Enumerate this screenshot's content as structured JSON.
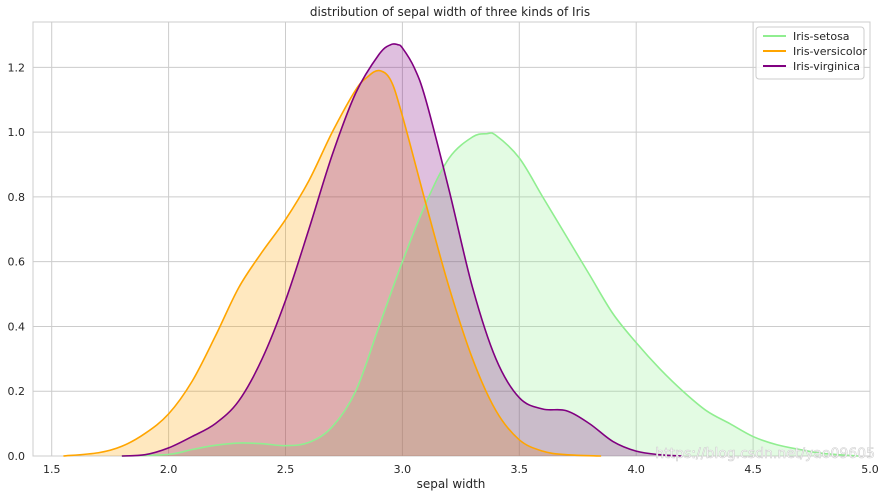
{
  "chart_data": {
    "type": "area",
    "title": "distribution of sepal width of three kinds of Iris",
    "xlabel": "sepal width",
    "ylabel": "",
    "xlim": [
      1.42,
      5.0
    ],
    "ylim": [
      0,
      1.34
    ],
    "xticks": [
      "1.5",
      "2.0",
      "2.5",
      "3.0",
      "3.5",
      "4.0",
      "4.5",
      "5.0"
    ],
    "yticks": [
      "0.0",
      "0.2",
      "0.4",
      "0.6",
      "0.8",
      "1.0",
      "1.2"
    ],
    "grid": true,
    "legend_position": "top-right",
    "series": [
      {
        "name": "Iris-setosa",
        "color": "#90ee90",
        "x": [
          1.8,
          2.0,
          2.1,
          2.2,
          2.3,
          2.4,
          2.5,
          2.6,
          2.7,
          2.8,
          2.9,
          3.0,
          3.1,
          3.2,
          3.3,
          3.36,
          3.4,
          3.5,
          3.6,
          3.7,
          3.8,
          3.9,
          4.0,
          4.1,
          4.2,
          4.3,
          4.4,
          4.5,
          4.6,
          4.7,
          4.8,
          4.95
        ],
        "y": [
          0.0,
          0.005,
          0.02,
          0.033,
          0.04,
          0.038,
          0.032,
          0.042,
          0.09,
          0.2,
          0.4,
          0.6,
          0.78,
          0.92,
          0.985,
          0.995,
          0.99,
          0.92,
          0.8,
          0.68,
          0.56,
          0.44,
          0.35,
          0.27,
          0.2,
          0.14,
          0.1,
          0.06,
          0.035,
          0.02,
          0.008,
          0.0
        ]
      },
      {
        "name": "Iris-versicolor",
        "color": "#ffa500",
        "x": [
          1.55,
          1.7,
          1.8,
          1.9,
          2.0,
          2.1,
          2.2,
          2.3,
          2.4,
          2.5,
          2.6,
          2.7,
          2.8,
          2.85,
          2.9,
          2.95,
          3.0,
          3.1,
          3.2,
          3.3,
          3.4,
          3.5,
          3.6,
          3.7,
          3.85
        ],
        "y": [
          0.0,
          0.01,
          0.03,
          0.07,
          0.13,
          0.23,
          0.37,
          0.52,
          0.63,
          0.73,
          0.85,
          1.0,
          1.13,
          1.17,
          1.19,
          1.16,
          1.05,
          0.78,
          0.52,
          0.3,
          0.14,
          0.05,
          0.015,
          0.004,
          0.0
        ]
      },
      {
        "name": "Iris-virginica",
        "color": "#800080",
        "x": [
          1.8,
          1.9,
          2.0,
          2.1,
          2.2,
          2.3,
          2.4,
          2.5,
          2.6,
          2.7,
          2.8,
          2.9,
          2.95,
          2.98,
          3.0,
          3.05,
          3.1,
          3.2,
          3.3,
          3.4,
          3.5,
          3.6,
          3.7,
          3.8,
          3.9,
          4.0,
          4.1,
          4.2
        ],
        "y": [
          0.0,
          0.004,
          0.025,
          0.06,
          0.1,
          0.17,
          0.3,
          0.48,
          0.7,
          0.93,
          1.12,
          1.24,
          1.27,
          1.27,
          1.26,
          1.2,
          1.1,
          0.82,
          0.52,
          0.3,
          0.18,
          0.145,
          0.14,
          0.1,
          0.045,
          0.015,
          0.004,
          0.0
        ]
      }
    ]
  },
  "watermark": "https://blog.csdn.net/yao09605"
}
